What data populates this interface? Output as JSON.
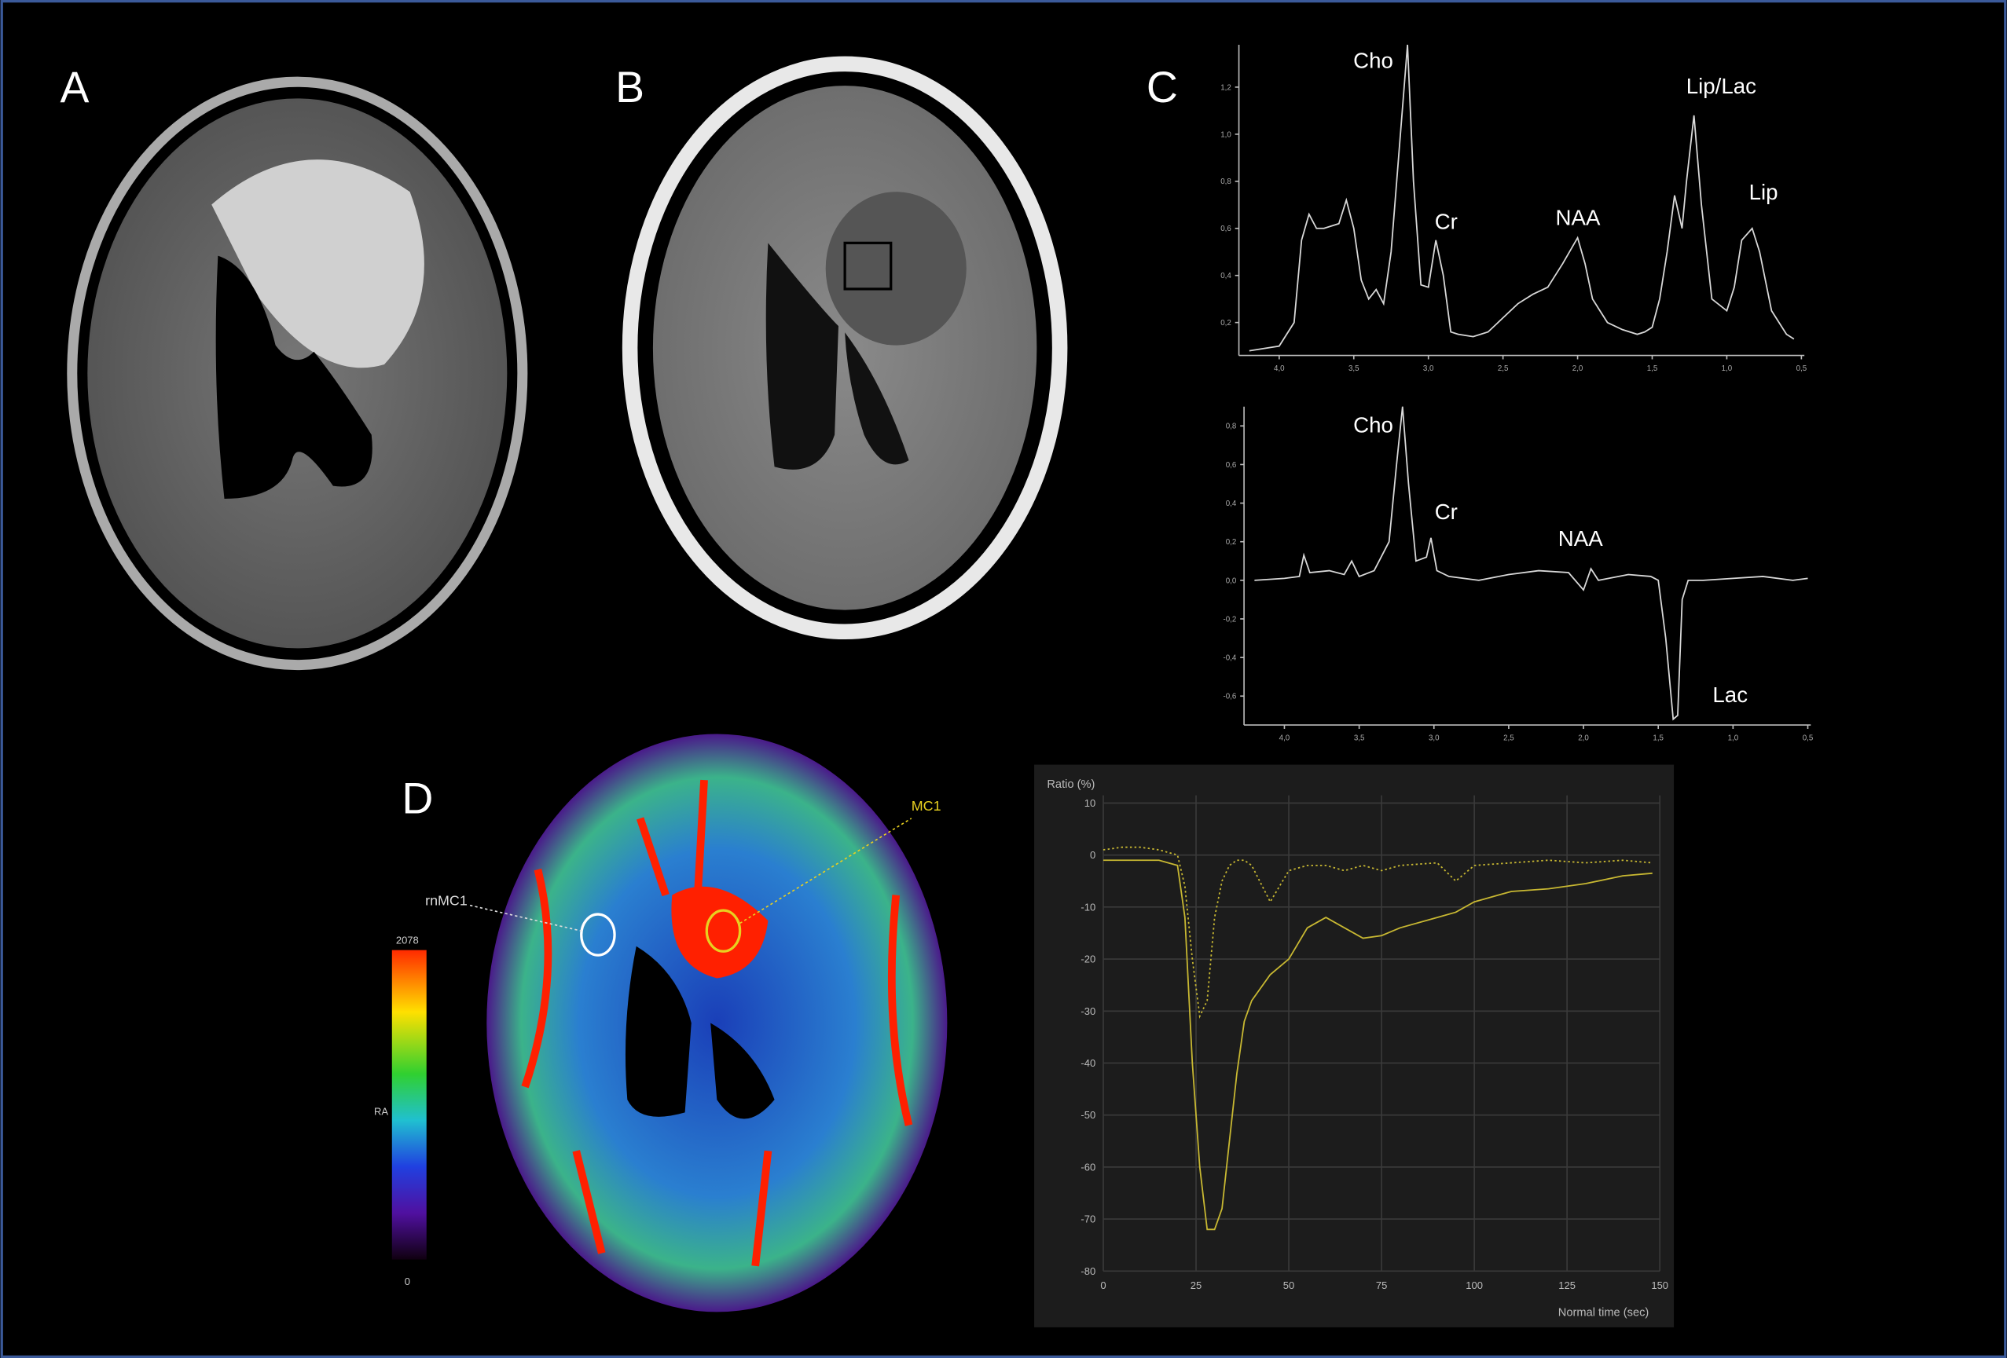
{
  "panel_labels": [
    "A",
    "B",
    "C",
    "D"
  ],
  "colorbar": {
    "max_label": "2078",
    "min_label": "0",
    "axis_label": "RA"
  },
  "roi_labels": [
    "rnMC1",
    "MC1"
  ],
  "chart_data": [
    {
      "type": "line",
      "annotations": [
        "Cho",
        "Cr",
        "NAA",
        "Lip/Lac",
        "Lip"
      ],
      "x": [
        4.2,
        4.1,
        4.0,
        3.9,
        3.85,
        3.8,
        3.75,
        3.7,
        3.6,
        3.55,
        3.5,
        3.45,
        3.4,
        3.35,
        3.3,
        3.25,
        3.2,
        3.14,
        3.1,
        3.05,
        3.0,
        2.95,
        2.9,
        2.85,
        2.8,
        2.7,
        2.6,
        2.5,
        2.4,
        2.3,
        2.2,
        2.1,
        2.0,
        1.95,
        1.9,
        1.8,
        1.7,
        1.6,
        1.55,
        1.5,
        1.45,
        1.4,
        1.35,
        1.3,
        1.27,
        1.22,
        1.17,
        1.1,
        1.0,
        0.95,
        0.9,
        0.83,
        0.78,
        0.7,
        0.6,
        0.55
      ],
      "series": [
        {
          "color": "#d8d8d8",
          "values": [
            0.08,
            0.09,
            0.1,
            0.2,
            0.55,
            0.66,
            0.6,
            0.6,
            0.62,
            0.72,
            0.6,
            0.38,
            0.3,
            0.34,
            0.28,
            0.5,
            0.9,
            1.38,
            0.8,
            0.36,
            0.35,
            0.55,
            0.4,
            0.16,
            0.15,
            0.14,
            0.16,
            0.22,
            0.28,
            0.32,
            0.35,
            0.45,
            0.56,
            0.45,
            0.3,
            0.2,
            0.17,
            0.15,
            0.16,
            0.18,
            0.3,
            0.5,
            0.74,
            0.6,
            0.8,
            1.08,
            0.7,
            0.3,
            0.25,
            0.35,
            0.55,
            0.6,
            0.5,
            0.25,
            0.15,
            0.13
          ]
        }
      ],
      "xlim": [
        4.27,
        0.48
      ],
      "ylim": [
        0.06,
        1.38
      ],
      "xticks": [
        {
          "value": 4.0,
          "label": "4,0"
        },
        {
          "value": 3.5,
          "label": "3,5"
        },
        {
          "value": 3.0,
          "label": "3,0"
        },
        {
          "value": 2.5,
          "label": "2,5"
        },
        {
          "value": 2.0,
          "label": "2,0"
        },
        {
          "value": 1.5,
          "label": "1,5"
        },
        {
          "value": 1.0,
          "label": "1,0"
        },
        {
          "value": 0.5,
          "label": "0,5"
        }
      ],
      "yticks": [
        {
          "value": 0.2,
          "label": "0,2"
        },
        {
          "value": 0.4,
          "label": "0,4"
        },
        {
          "value": 0.6,
          "label": "0,6"
        },
        {
          "value": 0.8,
          "label": "0,8"
        },
        {
          "value": 1.0,
          "label": "1,0"
        },
        {
          "value": 1.2,
          "label": "1,2"
        }
      ],
      "grid": false
    },
    {
      "type": "line",
      "annotations": [
        "Cho",
        "Cr",
        "NAA",
        "Lac"
      ],
      "x": [
        4.2,
        4.0,
        3.9,
        3.87,
        3.83,
        3.7,
        3.6,
        3.55,
        3.5,
        3.4,
        3.3,
        3.25,
        3.21,
        3.17,
        3.12,
        3.05,
        3.02,
        2.98,
        2.9,
        2.7,
        2.5,
        2.3,
        2.1,
        2.0,
        1.95,
        1.9,
        1.7,
        1.55,
        1.5,
        1.45,
        1.4,
        1.37,
        1.34,
        1.3,
        1.2,
        1.0,
        0.8,
        0.6,
        0.5
      ],
      "series": [
        {
          "color": "#d8d8d8",
          "values": [
            0.0,
            0.01,
            0.02,
            0.13,
            0.04,
            0.05,
            0.03,
            0.1,
            0.02,
            0.05,
            0.2,
            0.6,
            0.9,
            0.5,
            0.1,
            0.12,
            0.22,
            0.05,
            0.02,
            0.0,
            0.03,
            0.05,
            0.04,
            -0.05,
            0.06,
            0.0,
            0.03,
            0.02,
            0.0,
            -0.3,
            -0.72,
            -0.7,
            -0.1,
            0.0,
            0.0,
            0.01,
            0.02,
            0.0,
            0.01
          ]
        }
      ],
      "xlim": [
        4.27,
        0.48
      ],
      "ylim": [
        -0.75,
        0.9
      ],
      "xticks": [
        {
          "value": 4.0,
          "label": "4,0"
        },
        {
          "value": 3.5,
          "label": "3,5"
        },
        {
          "value": 3.0,
          "label": "3,0"
        },
        {
          "value": 2.5,
          "label": "2,5"
        },
        {
          "value": 2.0,
          "label": "2,0"
        },
        {
          "value": 1.5,
          "label": "1,5"
        },
        {
          "value": 1.0,
          "label": "1,0"
        },
        {
          "value": 0.5,
          "label": "0,5"
        }
      ],
      "yticks": [
        {
          "value": -0.6,
          "label": "-0,6"
        },
        {
          "value": -0.4,
          "label": "-0,4"
        },
        {
          "value": -0.2,
          "label": "-0,2"
        },
        {
          "value": 0.0,
          "label": "0,0"
        },
        {
          "value": 0.2,
          "label": "0,2"
        },
        {
          "value": 0.4,
          "label": "0,4"
        },
        {
          "value": 0.6,
          "label": "0,6"
        },
        {
          "value": 0.8,
          "label": "0,8"
        }
      ],
      "grid": false
    },
    {
      "type": "line",
      "y_label": "Ratio (%)",
      "x_label": "Normal time (sec)",
      "x": [
        0,
        5,
        10,
        15,
        20,
        22,
        24,
        26,
        28,
        30,
        32,
        34,
        36,
        38,
        40,
        45,
        50,
        55,
        60,
        65,
        70,
        75,
        80,
        90,
        95,
        100,
        110,
        120,
        130,
        140,
        148
      ],
      "series": [
        {
          "color": "#c8b832",
          "style": "solid",
          "values": [
            -1,
            -1,
            -1,
            -1,
            -2,
            -12,
            -40,
            -60,
            -72,
            -72,
            -68,
            -55,
            -42,
            -32,
            -28,
            -23,
            -20,
            -14,
            -12,
            -14,
            -16,
            -15.5,
            -14,
            -12,
            -11,
            -9,
            -7,
            -6.5,
            -5.5,
            -4,
            -3.5
          ]
        },
        {
          "color": "#c8b832",
          "style": "dotted",
          "values": [
            1,
            1.5,
            1.5,
            1,
            0,
            -6,
            -20,
            -31,
            -28,
            -12,
            -5,
            -2,
            -1,
            -1,
            -2,
            -9,
            -3,
            -2,
            -2,
            -3,
            -2,
            -3,
            -2,
            -1.5,
            -5,
            -2,
            -1.5,
            -1,
            -1.5,
            -1,
            -1.5
          ]
        }
      ],
      "xlim": [
        0,
        150
      ],
      "ylim": [
        -80,
        10
      ],
      "xticks": [
        0,
        25,
        50,
        75,
        100,
        125,
        150
      ],
      "yticks": [
        -80,
        -70,
        -60,
        -50,
        -40,
        -30,
        -20,
        -10,
        0,
        10
      ],
      "grid": true
    }
  ]
}
